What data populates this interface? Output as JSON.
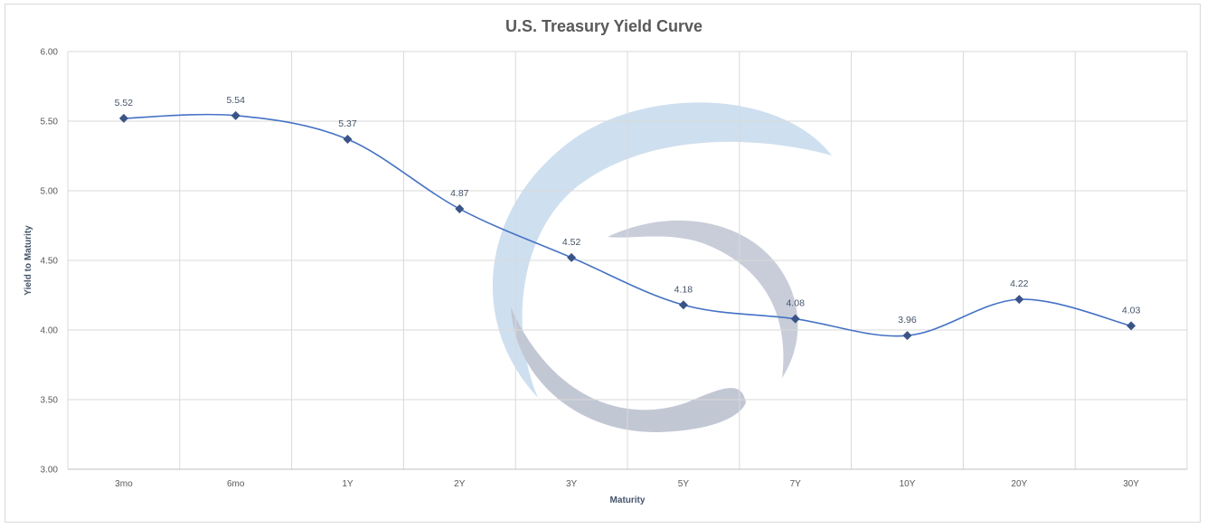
{
  "chart_data": {
    "type": "line",
    "title": "U.S. Treasury Yield Curve",
    "xlabel": "Maturity",
    "ylabel": "Yield to Maturity",
    "categories": [
      "3mo",
      "6mo",
      "1Y",
      "2Y",
      "3Y",
      "5Y",
      "7Y",
      "10Y",
      "20Y",
      "30Y"
    ],
    "series": [
      {
        "values": [
          5.52,
          5.54,
          5.37,
          4.87,
          4.52,
          4.18,
          4.08,
          3.96,
          4.22,
          4.03
        ]
      }
    ],
    "data_labels": [
      "5.52",
      "5.54",
      "5.37",
      "4.87",
      "4.52",
      "4.18",
      "4.08",
      "3.96",
      "4.22",
      "4.03"
    ],
    "ylim": [
      3.0,
      6.0
    ],
    "yticks": [
      "3.00",
      "3.50",
      "4.00",
      "4.50",
      "5.00",
      "5.50",
      "6.00"
    ],
    "grid": true,
    "line_style": "smooth",
    "marker": "diamond",
    "colors": {
      "line": "#4472c4",
      "marker": "#3a5488",
      "grid": "#d9d9d9",
      "watermark_light": "#c5d9ec",
      "watermark_gray": "#b7bdcc"
    }
  }
}
